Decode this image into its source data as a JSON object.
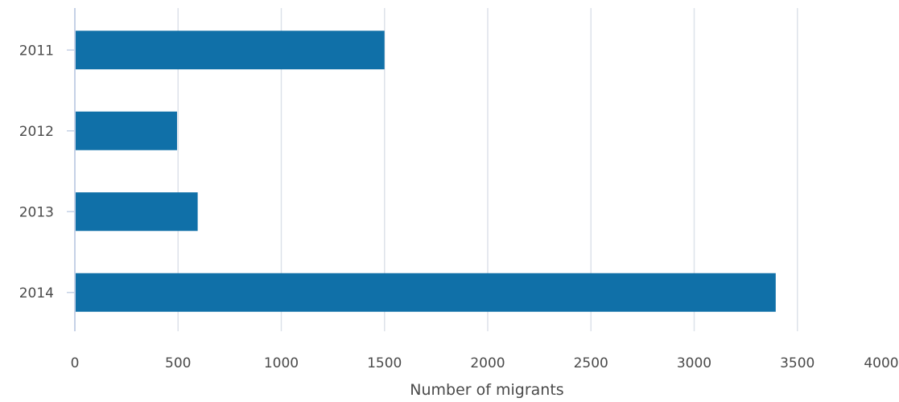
{
  "chart_data": {
    "type": "bar",
    "orientation": "horizontal",
    "categories": [
      "2011",
      "2012",
      "2013",
      "2014"
    ],
    "series": [
      {
        "values": [
          1500,
          495,
          595,
          3395
        ]
      }
    ],
    "title": "",
    "xlabel": "Number of migrants",
    "ylabel": "",
    "xlim": [
      0,
      4000
    ],
    "xticks": [
      "0",
      "500",
      "1000",
      "1500",
      "2000",
      "2500",
      "3000",
      "3500",
      "4000"
    ],
    "grid": true,
    "bar_color": "#1070a8",
    "grid_color": "#dde2ea",
    "axis_color": "#c5d1e6"
  }
}
